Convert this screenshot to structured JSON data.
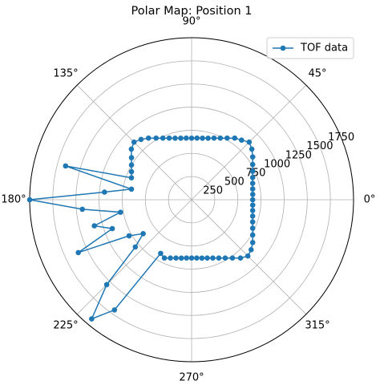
{
  "chart_data": {
    "type": "polar-line",
    "title": "Polar Map: Position 1",
    "x": [
      0,
      5,
      10,
      15,
      20,
      25,
      30,
      35,
      40,
      45,
      50,
      55,
      60,
      65,
      70,
      75,
      80,
      85,
      90,
      95,
      100,
      105,
      110,
      115,
      120,
      125,
      130,
      135,
      140,
      145,
      150,
      155,
      160,
      165,
      170,
      175,
      180,
      185,
      190,
      195,
      200,
      205,
      210,
      215,
      220,
      225,
      230,
      235,
      240,
      245,
      250,
      255,
      260,
      265,
      270,
      275,
      280,
      285,
      290,
      295,
      300,
      305,
      310,
      315,
      320,
      325,
      330,
      335,
      340,
      345,
      350,
      355
    ],
    "series": [
      {
        "name": "TOF data",
        "color": "#1f77b4",
        "values": [
          660,
          663,
          670,
          683,
          702,
          728,
          762,
          806,
          850,
          880,
          840,
          812,
          768,
          734,
          708,
          688,
          675,
          668,
          665,
          668,
          675,
          688,
          708,
          734,
          768,
          812,
          850,
          880,
          850,
          793,
          750,
          717,
          692,
          1410,
          660,
          945,
          1750,
          1185,
          780,
          1088,
          912,
          1351,
          780,
          639,
          794,
          1297,
          1680,
          1453,
          669,
          695,
          670,
          652,
          640,
          632,
          630,
          632,
          640,
          652,
          670,
          695,
          727,
          769,
          822,
          860,
          840,
          806,
          762,
          728,
          702,
          683,
          670,
          663
        ]
      }
    ],
    "xticks": [
      {
        "value": 0,
        "label": "0°"
      },
      {
        "value": 45,
        "label": "45°"
      },
      {
        "value": 90,
        "label": "90°"
      },
      {
        "value": 135,
        "label": "135°"
      },
      {
        "value": 180,
        "label": "180°"
      },
      {
        "value": 225,
        "label": "225°"
      },
      {
        "value": 270,
        "label": "270°"
      },
      {
        "value": 315,
        "label": "315°"
      }
    ],
    "ylim": [
      0,
      1750
    ],
    "yticks": [
      250,
      500,
      750,
      1000,
      1250,
      1500,
      1750
    ],
    "grid": true,
    "legend": "upper right"
  }
}
